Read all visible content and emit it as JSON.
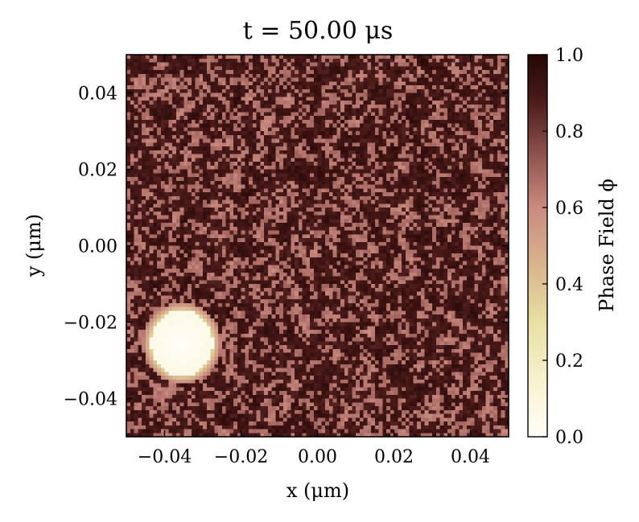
{
  "chart_data": {
    "type": "heatmap",
    "title": "t = 50.00 μs",
    "xlabel": "x (μm)",
    "ylabel": "y (μm)",
    "xlim": [
      -0.05,
      0.05
    ],
    "ylim": [
      -0.05,
      0.05
    ],
    "x_ticks": [
      {
        "value": -0.04,
        "label": "−0.04"
      },
      {
        "value": -0.02,
        "label": "−0.02"
      },
      {
        "value": 0.0,
        "label": "0.00"
      },
      {
        "value": 0.02,
        "label": "0.02"
      },
      {
        "value": 0.04,
        "label": "0.04"
      }
    ],
    "y_ticks": [
      {
        "value": -0.04,
        "label": "−0.04"
      },
      {
        "value": -0.02,
        "label": "−0.02"
      },
      {
        "value": 0.0,
        "label": "0.00"
      },
      {
        "value": 0.02,
        "label": "0.02"
      },
      {
        "value": 0.04,
        "label": "0.04"
      }
    ],
    "colorbar": {
      "label": "Phase Field ϕ",
      "range": [
        0.0,
        1.0
      ],
      "ticks": [
        {
          "value": 0.0,
          "label": "0.0"
        },
        {
          "value": 0.2,
          "label": "0.2"
        },
        {
          "value": 0.4,
          "label": "0.4"
        },
        {
          "value": 0.6,
          "label": "0.6"
        },
        {
          "value": 0.8,
          "label": "0.8"
        },
        {
          "value": 1.0,
          "label": "1.0"
        }
      ],
      "colormap": [
        {
          "value": 0.0,
          "color": "#fffdf7"
        },
        {
          "value": 0.1,
          "color": "#fbf6dc"
        },
        {
          "value": 0.3,
          "color": "#e8e0a3"
        },
        {
          "value": 0.45,
          "color": "#d8b48e"
        },
        {
          "value": 0.6,
          "color": "#c98a80"
        },
        {
          "value": 0.75,
          "color": "#8a4e4a"
        },
        {
          "value": 0.88,
          "color": "#4a1a19"
        },
        {
          "value": 1.0,
          "color": "#250707"
        }
      ]
    },
    "field": {
      "grid_resolution": 100,
      "description_values": {
        "background_mean_phi": 0.85,
        "inclusion_center": [
          -0.0355,
          -0.0255
        ],
        "inclusion_radius": 0.0082,
        "inclusion_phi": 0.0
      }
    },
    "grid": false
  }
}
